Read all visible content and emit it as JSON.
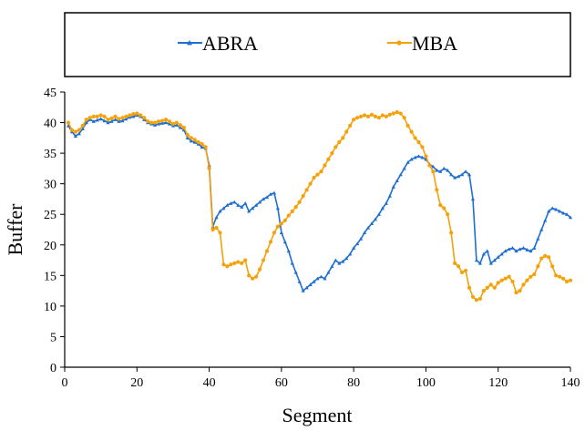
{
  "chart_data": {
    "type": "line",
    "xlabel": "Segment",
    "ylabel": "Buffer",
    "xlim": [
      0,
      140
    ],
    "ylim": [
      0,
      45
    ],
    "xticks": [
      0,
      20,
      40,
      60,
      80,
      100,
      120,
      140
    ],
    "yticks": [
      0,
      5,
      10,
      15,
      20,
      25,
      30,
      35,
      40,
      45
    ],
    "grid": false,
    "legend_position": "top, outside plot",
    "series": [
      {
        "name": "ABRA",
        "color": "#1f6fd1",
        "marker": "triangle",
        "x": [
          1,
          2,
          3,
          4,
          5,
          6,
          7,
          8,
          9,
          10,
          11,
          12,
          13,
          14,
          15,
          16,
          17,
          18,
          19,
          20,
          21,
          22,
          23,
          24,
          25,
          26,
          27,
          28,
          29,
          30,
          31,
          32,
          33,
          34,
          35,
          36,
          37,
          38,
          39,
          40,
          41,
          42,
          43,
          44,
          45,
          46,
          47,
          48,
          49,
          50,
          51,
          52,
          53,
          54,
          55,
          56,
          57,
          58,
          59,
          60,
          61,
          62,
          63,
          64,
          65,
          66,
          67,
          68,
          69,
          70,
          71,
          72,
          73,
          74,
          75,
          76,
          77,
          78,
          79,
          80,
          81,
          82,
          83,
          84,
          85,
          86,
          87,
          88,
          89,
          90,
          91,
          92,
          93,
          94,
          95,
          96,
          97,
          98,
          99,
          100,
          101,
          102,
          103,
          104,
          105,
          106,
          107,
          108,
          109,
          110,
          111,
          112,
          113,
          114,
          115,
          116,
          117,
          118,
          119,
          120,
          121,
          122,
          123,
          124,
          125,
          126,
          127,
          128,
          129,
          130,
          131,
          132,
          133,
          134,
          135,
          136,
          137,
          138,
          139,
          140
        ],
        "y": [
          39.5,
          38.5,
          37.8,
          38.2,
          39.0,
          40.0,
          40.5,
          40.2,
          40.4,
          40.6,
          40.3,
          40.0,
          40.2,
          40.5,
          40.2,
          40.3,
          40.6,
          40.9,
          41.0,
          41.2,
          41.0,
          40.5,
          40.0,
          39.8,
          39.6,
          39.8,
          39.9,
          40.0,
          39.8,
          39.5,
          39.6,
          39.2,
          38.8,
          37.5,
          37.0,
          36.8,
          36.5,
          36.0,
          35.8,
          33.0,
          23.0,
          24.5,
          25.5,
          26.0,
          26.5,
          26.8,
          27.0,
          26.5,
          26.2,
          26.8,
          25.5,
          26.0,
          26.5,
          27.0,
          27.5,
          27.8,
          28.3,
          28.5,
          26.0,
          22.0,
          20.5,
          19.0,
          17.0,
          15.5,
          14.0,
          12.5,
          13.0,
          13.5,
          14.0,
          14.5,
          14.8,
          14.5,
          15.5,
          16.5,
          17.5,
          17.0,
          17.3,
          17.8,
          18.5,
          19.5,
          20.2,
          21.0,
          22.0,
          22.8,
          23.5,
          24.2,
          25.0,
          26.0,
          26.8,
          28.0,
          29.5,
          30.5,
          31.5,
          32.5,
          33.5,
          34.0,
          34.3,
          34.5,
          34.3,
          34.0,
          33.2,
          32.8,
          32.2,
          32.0,
          32.5,
          32.2,
          31.5,
          31.0,
          31.2,
          31.5,
          32.0,
          31.5,
          27.5,
          17.5,
          17.0,
          18.5,
          19.0,
          17.0,
          17.5,
          18.0,
          18.5,
          19.0,
          19.3,
          19.5,
          19.0,
          19.3,
          19.5,
          19.2,
          19.0,
          19.5,
          21.0,
          22.5,
          24.0,
          25.5,
          26.0,
          25.8,
          25.5,
          25.2,
          25.0,
          24.5
        ]
      },
      {
        "name": "MBA",
        "color": "#f5a10a",
        "marker": "circle",
        "x": [
          1,
          2,
          3,
          4,
          5,
          6,
          7,
          8,
          9,
          10,
          11,
          12,
          13,
          14,
          15,
          16,
          17,
          18,
          19,
          20,
          21,
          22,
          23,
          24,
          25,
          26,
          27,
          28,
          29,
          30,
          31,
          32,
          33,
          34,
          35,
          36,
          37,
          38,
          39,
          40,
          41,
          42,
          43,
          44,
          45,
          46,
          47,
          48,
          49,
          50,
          51,
          52,
          53,
          54,
          55,
          56,
          57,
          58,
          59,
          60,
          61,
          62,
          63,
          64,
          65,
          66,
          67,
          68,
          69,
          70,
          71,
          72,
          73,
          74,
          75,
          76,
          77,
          78,
          79,
          80,
          81,
          82,
          83,
          84,
          85,
          86,
          87,
          88,
          89,
          90,
          91,
          92,
          93,
          94,
          95,
          96,
          97,
          98,
          99,
          100,
          101,
          102,
          103,
          104,
          105,
          106,
          107,
          108,
          109,
          110,
          111,
          112,
          113,
          114,
          115,
          116,
          117,
          118,
          119,
          120,
          121,
          122,
          123,
          124,
          125,
          126,
          127,
          128,
          129,
          130,
          131,
          132,
          133,
          134,
          135,
          136,
          137,
          138,
          139,
          140
        ],
        "y": [
          40.0,
          38.8,
          38.5,
          38.8,
          39.5,
          40.5,
          40.8,
          41.0,
          41.0,
          41.2,
          41.0,
          40.5,
          40.7,
          41.0,
          40.6,
          40.8,
          41.0,
          41.2,
          41.4,
          41.5,
          41.2,
          40.8,
          40.2,
          40.0,
          40.0,
          40.2,
          40.3,
          40.5,
          40.2,
          39.8,
          40.0,
          39.6,
          39.2,
          38.0,
          37.5,
          37.2,
          36.8,
          36.5,
          36.0,
          32.5,
          22.5,
          22.8,
          22.0,
          16.8,
          16.5,
          16.8,
          17.0,
          17.2,
          17.0,
          17.5,
          15.0,
          14.5,
          14.8,
          16.0,
          17.5,
          19.0,
          20.5,
          22.0,
          23.0,
          23.5,
          24.0,
          24.8,
          25.5,
          26.2,
          27.0,
          28.0,
          29.0,
          30.0,
          31.0,
          31.5,
          32.0,
          33.0,
          34.0,
          35.0,
          36.0,
          36.8,
          37.5,
          38.5,
          39.5,
          40.5,
          40.8,
          41.0,
          41.2,
          41.0,
          41.3,
          41.0,
          40.8,
          41.2,
          41.0,
          41.3,
          41.5,
          41.7,
          41.5,
          40.8,
          39.5,
          38.5,
          37.5,
          36.8,
          36.0,
          34.5,
          33.0,
          32.0,
          29.0,
          26.5,
          26.0,
          25.0,
          22.0,
          17.0,
          16.5,
          15.5,
          15.8,
          13.0,
          11.5,
          11.0,
          11.2,
          12.5,
          13.0,
          13.5,
          13.0,
          13.8,
          14.2,
          14.5,
          14.8,
          14.0,
          12.2,
          12.5,
          13.5,
          14.2,
          14.8,
          15.2,
          16.5,
          17.8,
          18.2,
          18.0,
          16.5,
          15.0,
          14.8,
          14.5,
          14.0,
          14.2
        ]
      }
    ]
  }
}
